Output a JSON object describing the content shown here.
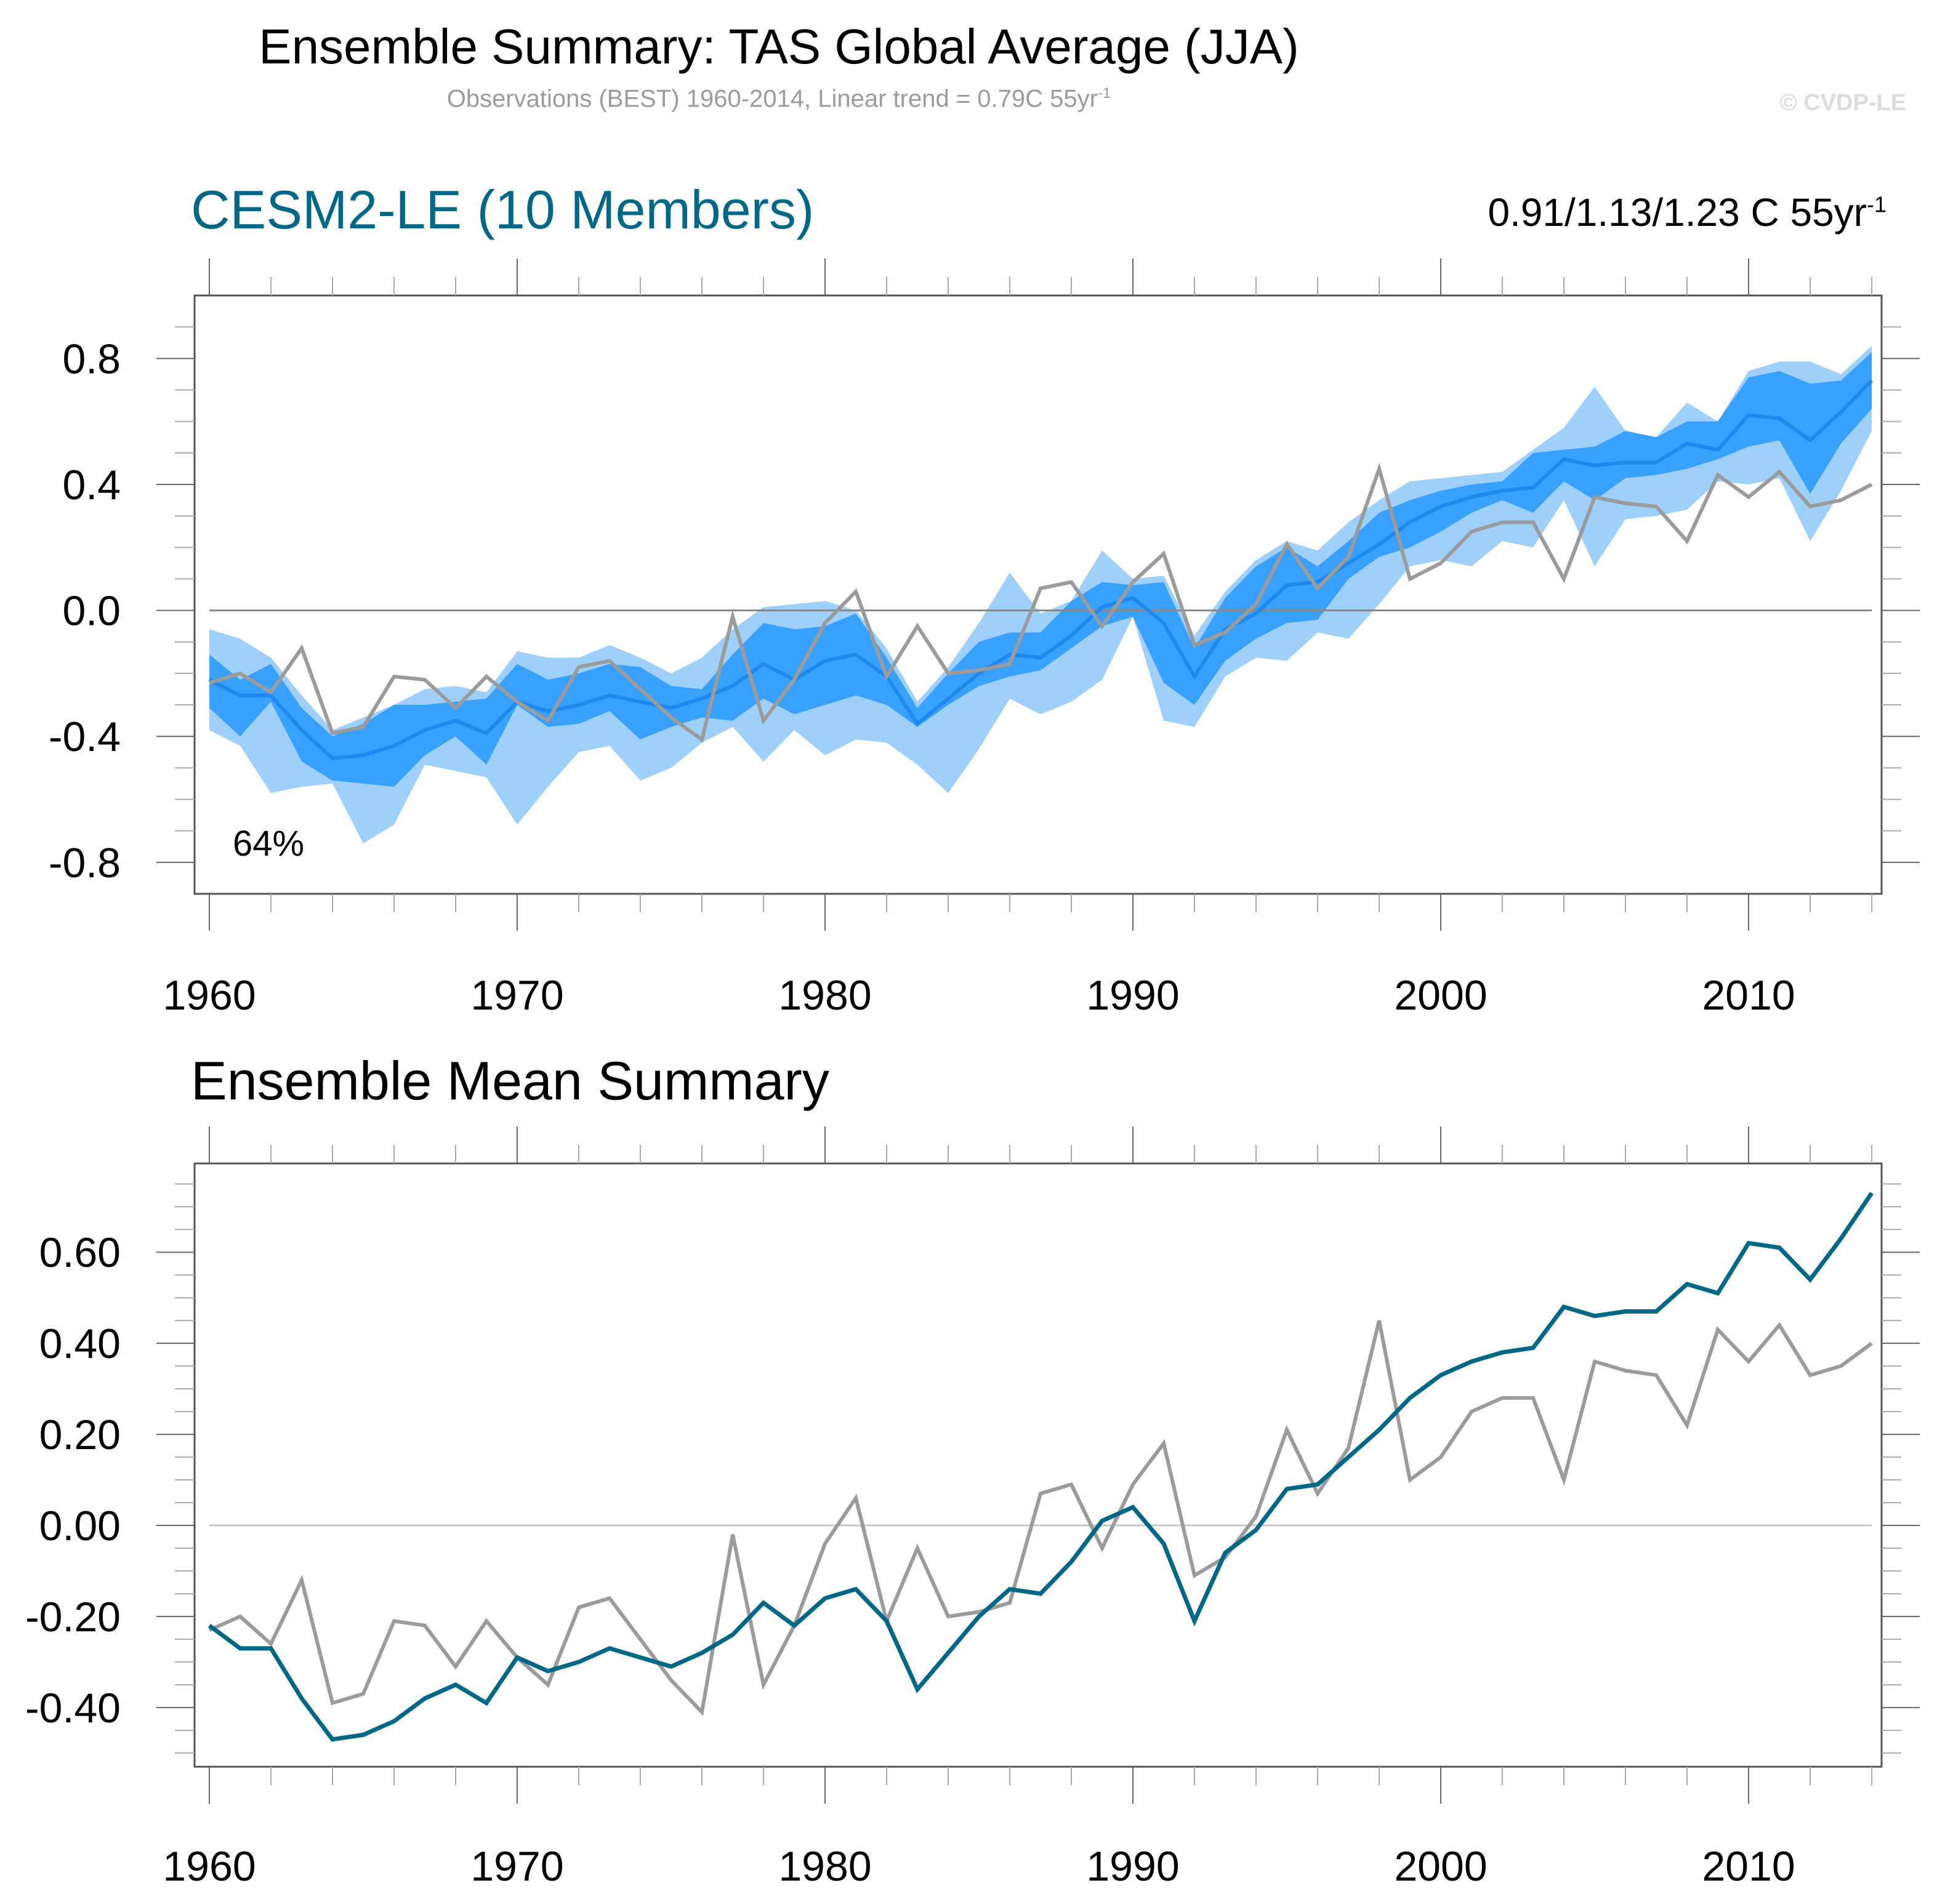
{
  "header": {
    "title": "Ensemble Summary: TAS Global Average (JJA)",
    "subtitle": "Observations (BEST) 1960-2014, Linear trend = 0.79C 55yr",
    "subtitle_sup": "-1",
    "watermark": "© CVDP-LE"
  },
  "colors": {
    "outer_band": "#9fd0fc",
    "inner_band": "#38a0fe",
    "ensemble_mean_top": "#1e88ee",
    "ensemble_mean_bottom": "#006886",
    "observations": "#9b9b9b",
    "zero_line": "#9b9b9b",
    "axis": "#555555",
    "panel1_title": "#006886"
  },
  "chart_data": [
    {
      "type": "area",
      "title": "CESM2-LE (10 Members)",
      "annotation_right": "0.91/1.13/1.23 C 55yr",
      "annotation_right_sup": "-1",
      "annotation_inset": "64%",
      "xlabel": "",
      "ylabel": "",
      "xlim": [
        1959.5,
        2014.5
      ],
      "ylim": [
        -0.9,
        1.0
      ],
      "x_ticks": [
        1960,
        1970,
        1980,
        1990,
        2000,
        2010
      ],
      "x_tick_labels": [
        "1960",
        "1970",
        "1980",
        "1990",
        "2000",
        "2010"
      ],
      "x_minor_step": 2,
      "y_ticks": [
        0.8,
        0.4,
        0.0,
        -0.4,
        -0.8
      ],
      "y_tick_labels": [
        "0.8",
        "0.4",
        "0.0",
        "-0.4",
        "-0.8"
      ],
      "y_minor_step": 0.1,
      "grid": false,
      "zero_line": true,
      "x": [
        1960,
        1961,
        1962,
        1963,
        1964,
        1965,
        1966,
        1967,
        1968,
        1969,
        1970,
        1971,
        1972,
        1973,
        1974,
        1975,
        1976,
        1977,
        1978,
        1979,
        1980,
        1981,
        1982,
        1983,
        1984,
        1985,
        1986,
        1987,
        1988,
        1989,
        1990,
        1991,
        1992,
        1993,
        1994,
        1995,
        1996,
        1997,
        1998,
        1999,
        2000,
        2001,
        2002,
        2003,
        2004,
        2005,
        2006,
        2007,
        2008,
        2009,
        2010,
        2011,
        2012,
        2013,
        2014
      ],
      "series": [
        {
          "name": "Ensemble range (min-max)",
          "kind": "band",
          "upper": [
            -0.06,
            -0.09,
            -0.15,
            -0.27,
            -0.38,
            -0.34,
            -0.3,
            -0.25,
            -0.24,
            -0.26,
            -0.13,
            -0.15,
            -0.15,
            -0.11,
            -0.15,
            -0.2,
            -0.15,
            -0.06,
            0.01,
            0.02,
            0.03,
            0.0,
            -0.12,
            -0.29,
            -0.18,
            -0.04,
            0.12,
            -0.01,
            0.03,
            0.19,
            0.1,
            0.11,
            -0.08,
            0.06,
            0.16,
            0.22,
            0.19,
            0.28,
            0.35,
            0.41,
            0.42,
            0.43,
            0.44,
            0.51,
            0.58,
            0.71,
            0.57,
            0.55,
            0.66,
            0.6,
            0.76,
            0.79,
            0.79,
            0.75,
            0.84
          ],
          "lower": [
            -0.38,
            -0.43,
            -0.58,
            -0.56,
            -0.55,
            -0.74,
            -0.68,
            -0.49,
            -0.51,
            -0.53,
            -0.68,
            -0.56,
            -0.45,
            -0.43,
            -0.54,
            -0.5,
            -0.42,
            -0.37,
            -0.48,
            -0.38,
            -0.46,
            -0.41,
            -0.42,
            -0.49,
            -0.58,
            -0.44,
            -0.28,
            -0.33,
            -0.29,
            -0.22,
            -0.02,
            -0.35,
            -0.37,
            -0.21,
            -0.15,
            -0.16,
            -0.07,
            -0.09,
            0.02,
            0.14,
            0.16,
            0.14,
            0.22,
            0.2,
            0.35,
            0.14,
            0.29,
            0.3,
            0.32,
            0.41,
            0.4,
            0.42,
            0.22,
            0.38,
            0.57
          ]
        },
        {
          "name": "Ensemble interquartile range",
          "kind": "band",
          "upper": [
            -0.14,
            -0.22,
            -0.17,
            -0.31,
            -0.4,
            -0.36,
            -0.3,
            -0.3,
            -0.29,
            -0.28,
            -0.17,
            -0.22,
            -0.2,
            -0.17,
            -0.18,
            -0.24,
            -0.25,
            -0.14,
            -0.04,
            -0.06,
            -0.05,
            -0.01,
            -0.15,
            -0.31,
            -0.2,
            -0.1,
            -0.07,
            -0.07,
            0.03,
            0.09,
            0.08,
            0.09,
            -0.12,
            0.04,
            0.14,
            0.2,
            0.14,
            0.22,
            0.31,
            0.35,
            0.38,
            0.4,
            0.41,
            0.5,
            0.51,
            0.52,
            0.57,
            0.55,
            0.6,
            0.6,
            0.74,
            0.76,
            0.72,
            0.73,
            0.82
          ],
          "lower": [
            -0.31,
            -0.4,
            -0.29,
            -0.48,
            -0.54,
            -0.55,
            -0.56,
            -0.46,
            -0.4,
            -0.49,
            -0.3,
            -0.37,
            -0.36,
            -0.32,
            -0.41,
            -0.37,
            -0.34,
            -0.35,
            -0.28,
            -0.33,
            -0.3,
            -0.27,
            -0.3,
            -0.37,
            -0.3,
            -0.24,
            -0.21,
            -0.19,
            -0.12,
            -0.05,
            -0.02,
            -0.23,
            -0.3,
            -0.16,
            -0.09,
            -0.04,
            -0.03,
            0.1,
            0.17,
            0.2,
            0.25,
            0.31,
            0.35,
            0.31,
            0.41,
            0.35,
            0.42,
            0.43,
            0.45,
            0.48,
            0.52,
            0.54,
            0.37,
            0.53,
            0.64
          ]
        },
        {
          "name": "Ensemble mean",
          "kind": "line",
          "values": [
            -0.22,
            -0.27,
            -0.27,
            -0.38,
            -0.47,
            -0.46,
            -0.43,
            -0.38,
            -0.35,
            -0.39,
            -0.29,
            -0.32,
            -0.3,
            -0.27,
            -0.29,
            -0.31,
            -0.28,
            -0.24,
            -0.17,
            -0.22,
            -0.16,
            -0.14,
            -0.21,
            -0.36,
            -0.28,
            -0.2,
            -0.14,
            -0.15,
            -0.08,
            0.01,
            0.04,
            -0.04,
            -0.21,
            -0.06,
            -0.01,
            0.08,
            0.09,
            0.15,
            0.21,
            0.28,
            0.33,
            0.36,
            0.38,
            0.39,
            0.48,
            0.46,
            0.47,
            0.47,
            0.53,
            0.51,
            0.62,
            0.61,
            0.54,
            0.63,
            0.73
          ]
        },
        {
          "name": "Observations (BEST)",
          "kind": "line",
          "values": [
            -0.23,
            -0.2,
            -0.26,
            -0.12,
            -0.39,
            -0.37,
            -0.21,
            -0.22,
            -0.31,
            -0.21,
            -0.29,
            -0.35,
            -0.18,
            -0.16,
            -0.25,
            -0.34,
            -0.41,
            -0.02,
            -0.35,
            -0.22,
            -0.04,
            0.06,
            -0.21,
            -0.05,
            -0.2,
            -0.19,
            -0.17,
            0.07,
            0.09,
            -0.05,
            0.09,
            0.18,
            -0.11,
            -0.07,
            0.02,
            0.21,
            0.07,
            0.17,
            0.45,
            0.1,
            0.15,
            0.25,
            0.28,
            0.28,
            0.1,
            0.36,
            0.34,
            0.33,
            0.22,
            0.43,
            0.36,
            0.44,
            0.33,
            0.35,
            0.4
          ]
        }
      ]
    },
    {
      "type": "line",
      "title": "Ensemble Mean Summary",
      "xlabel": "",
      "ylabel": "",
      "xlim": [
        1959.5,
        2014.5
      ],
      "ylim": [
        -0.53,
        0.795
      ],
      "x_ticks": [
        1960,
        1970,
        1980,
        1990,
        2000,
        2010
      ],
      "x_tick_labels": [
        "1960",
        "1970",
        "1980",
        "1990",
        "2000",
        "2010"
      ],
      "x_minor_step": 2,
      "y_ticks": [
        0.6,
        0.4,
        0.2,
        0.0,
        -0.2,
        -0.4
      ],
      "y_tick_labels": [
        "0.60",
        "0.40",
        "0.20",
        "0.00",
        "-0.20",
        "-0.40"
      ],
      "y_minor_step": 0.05,
      "grid": false,
      "zero_line": true,
      "x": [
        1960,
        1961,
        1962,
        1963,
        1964,
        1965,
        1966,
        1967,
        1968,
        1969,
        1970,
        1971,
        1972,
        1973,
        1974,
        1975,
        1976,
        1977,
        1978,
        1979,
        1980,
        1981,
        1982,
        1983,
        1984,
        1985,
        1986,
        1987,
        1988,
        1989,
        1990,
        1991,
        1992,
        1993,
        1994,
        1995,
        1996,
        1997,
        1998,
        1999,
        2000,
        2001,
        2002,
        2003,
        2004,
        2005,
        2006,
        2007,
        2008,
        2009,
        2010,
        2011,
        2012,
        2013,
        2014
      ],
      "series": [
        {
          "name": "Observations (BEST)",
          "values": [
            -0.23,
            -0.2,
            -0.26,
            -0.12,
            -0.39,
            -0.37,
            -0.21,
            -0.22,
            -0.31,
            -0.21,
            -0.29,
            -0.35,
            -0.18,
            -0.16,
            -0.25,
            -0.34,
            -0.41,
            -0.02,
            -0.35,
            -0.22,
            -0.04,
            0.06,
            -0.21,
            -0.05,
            -0.2,
            -0.19,
            -0.17,
            0.07,
            0.09,
            -0.05,
            0.09,
            0.18,
            -0.11,
            -0.07,
            0.02,
            0.21,
            0.07,
            0.17,
            0.45,
            0.1,
            0.15,
            0.25,
            0.28,
            0.28,
            0.1,
            0.36,
            0.34,
            0.33,
            0.22,
            0.43,
            0.36,
            0.44,
            0.33,
            0.35,
            0.4
          ]
        },
        {
          "name": "CESM2-LE Ensemble mean",
          "values": [
            -0.22,
            -0.27,
            -0.27,
            -0.38,
            -0.47,
            -0.46,
            -0.43,
            -0.38,
            -0.35,
            -0.39,
            -0.29,
            -0.32,
            -0.3,
            -0.27,
            -0.29,
            -0.31,
            -0.28,
            -0.24,
            -0.17,
            -0.22,
            -0.16,
            -0.14,
            -0.21,
            -0.36,
            -0.28,
            -0.2,
            -0.14,
            -0.15,
            -0.08,
            0.01,
            0.04,
            -0.04,
            -0.21,
            -0.06,
            -0.01,
            0.08,
            0.09,
            0.15,
            0.21,
            0.28,
            0.33,
            0.36,
            0.38,
            0.39,
            0.48,
            0.46,
            0.47,
            0.47,
            0.53,
            0.51,
            0.62,
            0.61,
            0.54,
            0.63,
            0.73
          ]
        }
      ]
    }
  ]
}
